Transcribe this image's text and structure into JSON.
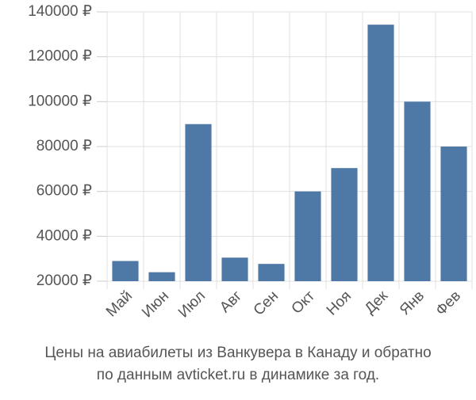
{
  "chart_data": {
    "type": "bar",
    "title": "Цены на авиабилеты из Ванкувера в Канаду и обратно",
    "subtitle": "по данным avticket.ru в динамике за год.",
    "categories": [
      "Май",
      "Июн",
      "Июл",
      "Авг",
      "Сен",
      "Окт",
      "Ноя",
      "Дек",
      "Янв",
      "Фев"
    ],
    "values": [
      29000,
      24000,
      90000,
      30500,
      27700,
      60000,
      70400,
      134300,
      100000,
      80000
    ],
    "color": "#4e79a7",
    "ylim": [
      20000,
      140000
    ],
    "yticks": [
      {
        "value": 20000,
        "label": "20000 ₽"
      },
      {
        "value": 40000,
        "label": "40000 ₽"
      },
      {
        "value": 60000,
        "label": "60000 ₽"
      },
      {
        "value": 80000,
        "label": "80000 ₽"
      },
      {
        "value": 100000,
        "label": "100000 ₽"
      },
      {
        "value": 120000,
        "label": "120000 ₽"
      },
      {
        "value": 140000,
        "label": "140000 ₽"
      }
    ],
    "grid": true
  }
}
